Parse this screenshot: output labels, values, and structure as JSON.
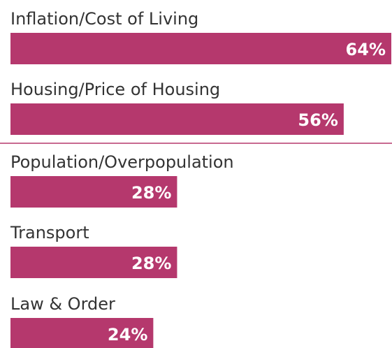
{
  "chart_data": {
    "type": "hbar",
    "categories": [
      "Inflation/Cost of Living",
      "Housing/Price of Housing",
      "Population/Overpopulation",
      "Transport",
      "Law & Order"
    ],
    "values": [
      64,
      56,
      28,
      28,
      24
    ],
    "value_labels": [
      "64%",
      "56%",
      "28%",
      "28%",
      "24%"
    ],
    "color": "#b5386d"
  }
}
